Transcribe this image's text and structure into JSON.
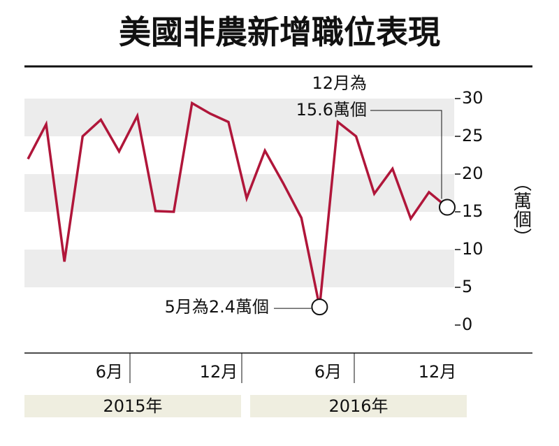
{
  "chart_data": {
    "type": "line",
    "title": "美國非農新增職位表現",
    "y_label": "（萬個）",
    "categories": [
      null,
      null,
      null,
      null,
      null,
      "6月",
      null,
      null,
      null,
      null,
      null,
      "12月",
      null,
      null,
      null,
      null,
      null,
      "6月",
      null,
      null,
      null,
      null,
      null,
      "12月"
    ],
    "years": [
      "2015年",
      "2016年"
    ],
    "values": [
      22.0,
      26.6,
      8.4,
      25.0,
      27.2,
      23.0,
      27.7,
      15.1,
      15.0,
      29.4,
      28.0,
      26.9,
      16.8,
      23.1,
      18.8,
      14.2,
      2.4,
      26.9,
      25.0,
      17.4,
      20.7,
      14.1,
      17.6,
      15.6
    ],
    "color": "#b0163a",
    "ylim": [
      -3,
      33
    ],
    "yticks": [
      0,
      5,
      10,
      15,
      20,
      25,
      30
    ],
    "band_color": "#ececec",
    "annotations": [
      {
        "text": [
          "12月為",
          "15.6萬個"
        ],
        "point": 23
      },
      {
        "text": [
          "5月為2.4萬個"
        ],
        "point": 16
      }
    ]
  }
}
